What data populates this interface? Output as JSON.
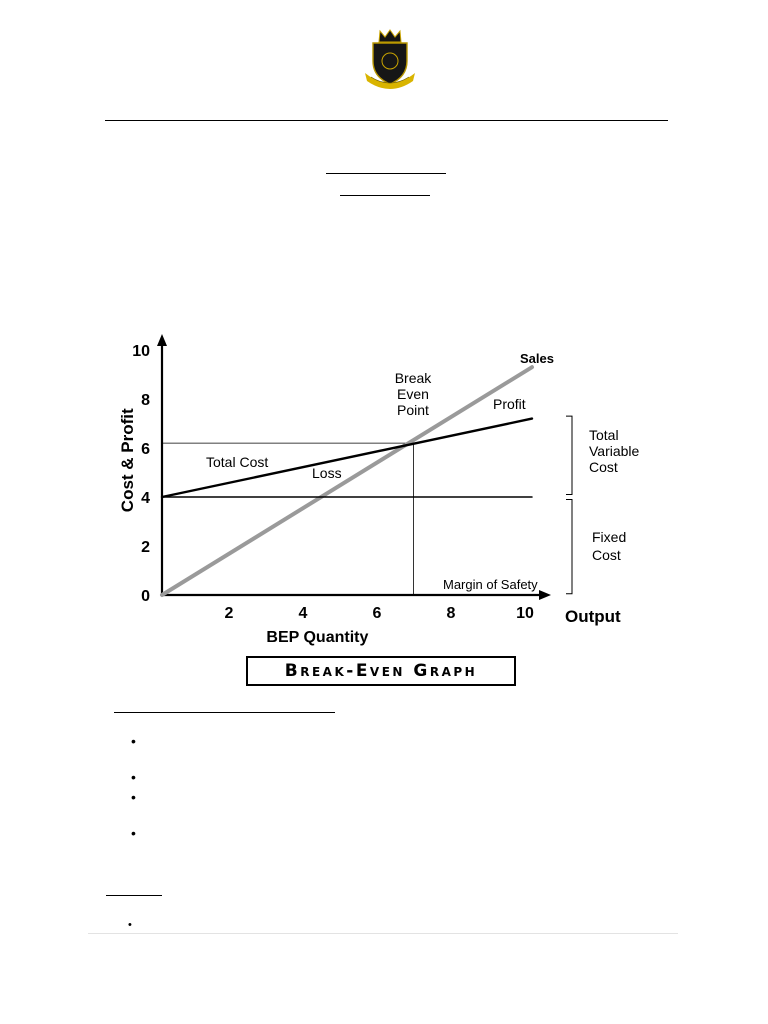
{
  "logo": {
    "icon": "school-crest-icon",
    "ribbon_color": "#d9b400",
    "shield_color": "#151515"
  },
  "chart_data": {
    "type": "line",
    "title": "Break-Even Graph",
    "xlabel": "Output",
    "xlabel_secondary": "BEP Quantity",
    "ylabel": "Cost & Profit",
    "xlim": [
      0,
      10
    ],
    "ylim": [
      0,
      10
    ],
    "x_ticks": [
      "2",
      "4",
      "6",
      "8",
      "10"
    ],
    "y_ticks": [
      "0",
      "2",
      "4",
      "6",
      "8",
      "10"
    ],
    "series": [
      {
        "name": "Sales",
        "x": [
          0,
          10
        ],
        "y": [
          0,
          9.3
        ]
      },
      {
        "name": "Total Cost",
        "x": [
          0,
          10
        ],
        "y": [
          4,
          7.2
        ]
      },
      {
        "name": "Fixed Cost",
        "x": [
          0,
          10
        ],
        "y": [
          4,
          4
        ]
      }
    ],
    "break_even_point": {
      "x": 6.8,
      "y": 6.2
    },
    "annotations": {
      "sales": "Sales",
      "break_even": [
        "Break",
        "Even",
        "Point"
      ],
      "profit": "Profit",
      "total_cost": "Total Cost",
      "loss": "Loss",
      "margin_of_safety": "Margin of Safety",
      "total_variable_cost": [
        "Total",
        "Variable",
        "Cost"
      ],
      "fixed_cost": [
        "Fixed",
        "Cost"
      ]
    },
    "grid": false
  }
}
